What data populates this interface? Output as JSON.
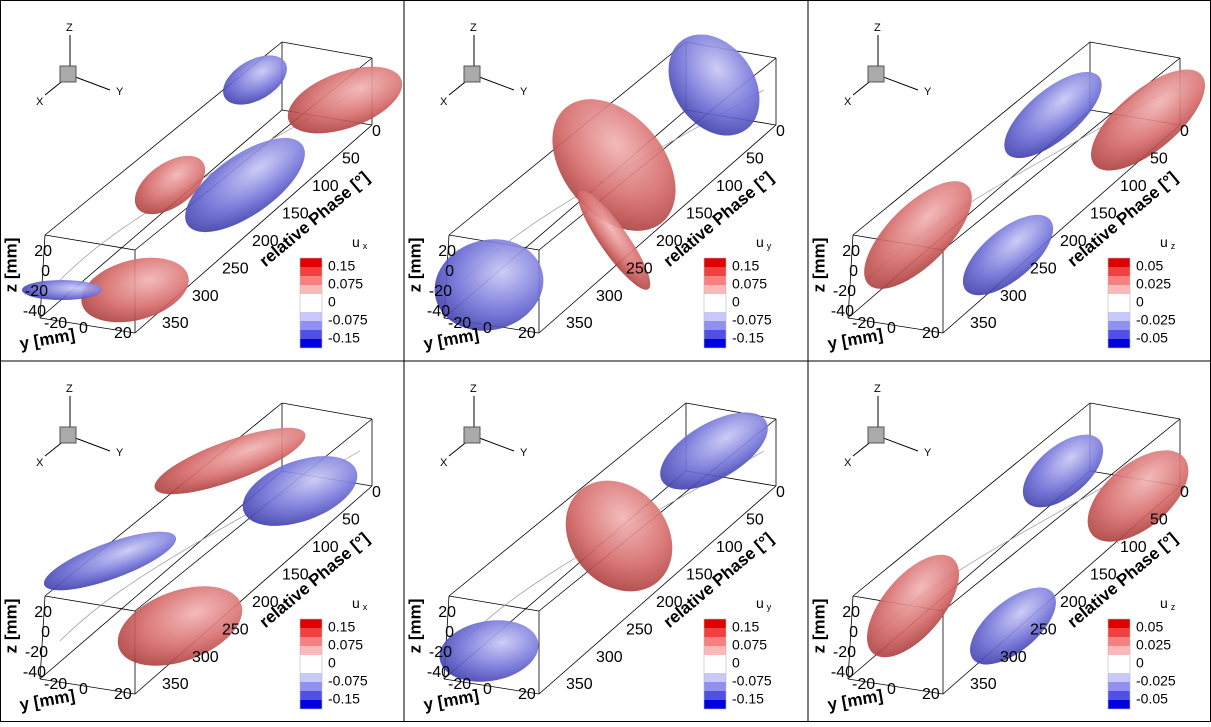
{
  "panels": [
    {
      "triad": {
        "z": "Z",
        "x": "X",
        "y": "Y"
      },
      "z_axis": {
        "label": "z [mm]",
        "ticks": [
          "20",
          "0",
          "-20",
          "-40"
        ]
      },
      "y_axis": {
        "label": "y [mm]",
        "ticks": [
          "-20",
          "0",
          "20"
        ]
      },
      "phase_axis": {
        "label": "relative Phase [°]",
        "ticks": [
          "0",
          "50",
          "100",
          "150",
          "200",
          "250",
          "300",
          "350"
        ]
      },
      "legend": {
        "title": "u",
        "subscript": "x",
        "ticks": [
          "0.15",
          "0.075",
          "0",
          "-0.075",
          "-0.15"
        ]
      }
    },
    {
      "triad": {
        "z": "Z",
        "x": "X",
        "y": "Y"
      },
      "z_axis": {
        "label": "z [mm]",
        "ticks": [
          "20",
          "0",
          "-20",
          "-40"
        ]
      },
      "y_axis": {
        "label": "y [mm]",
        "ticks": [
          "-20",
          "0",
          "20"
        ]
      },
      "phase_axis": {
        "label": "relative Phase [°]",
        "ticks": [
          "0",
          "50",
          "100",
          "150",
          "200",
          "250",
          "300",
          "350"
        ]
      },
      "legend": {
        "title": "u",
        "subscript": "y",
        "ticks": [
          "0.15",
          "0.075",
          "0",
          "-0.075",
          "-0.15"
        ]
      }
    },
    {
      "triad": {
        "z": "Z",
        "x": "X",
        "y": "Y"
      },
      "z_axis": {
        "label": "z [mm]",
        "ticks": [
          "20",
          "0",
          "-20",
          "-40"
        ]
      },
      "y_axis": {
        "label": "y [mm]",
        "ticks": [
          "-20",
          "0",
          "20"
        ]
      },
      "phase_axis": {
        "label": "relative Phase [°]",
        "ticks": [
          "0",
          "50",
          "100",
          "150",
          "200",
          "250",
          "300",
          "350"
        ]
      },
      "legend": {
        "title": "u",
        "subscript": "z",
        "ticks": [
          "0.05",
          "0.025",
          "0",
          "-0.025",
          "-0.05"
        ]
      }
    },
    {
      "triad": {
        "z": "Z",
        "x": "X",
        "y": "Y"
      },
      "z_axis": {
        "label": "z [mm]",
        "ticks": [
          "20",
          "0",
          "-20",
          "-40"
        ]
      },
      "y_axis": {
        "label": "y [mm]",
        "ticks": [
          "-20",
          "0",
          "20"
        ]
      },
      "phase_axis": {
        "label": "relative Phase [°]",
        "ticks": [
          "0",
          "50",
          "100",
          "150",
          "200",
          "250",
          "300",
          "350"
        ]
      },
      "legend": {
        "title": "u",
        "subscript": "x",
        "ticks": [
          "0.15",
          "0.075",
          "0",
          "-0.075",
          "-0.15"
        ]
      }
    },
    {
      "triad": {
        "z": "Z",
        "x": "X",
        "y": "Y"
      },
      "z_axis": {
        "label": "z [mm]",
        "ticks": [
          "20",
          "0",
          "-20",
          "-40"
        ]
      },
      "y_axis": {
        "label": "y [mm]",
        "ticks": [
          "-20",
          "0",
          "20"
        ]
      },
      "phase_axis": {
        "label": "relative Phase [°]",
        "ticks": [
          "0",
          "50",
          "100",
          "150",
          "200",
          "250",
          "300",
          "350"
        ]
      },
      "legend": {
        "title": "u",
        "subscript": "y",
        "ticks": [
          "0.15",
          "0.075",
          "0",
          "-0.075",
          "-0.15"
        ]
      }
    },
    {
      "triad": {
        "z": "Z",
        "x": "X",
        "y": "Y"
      },
      "z_axis": {
        "label": "z [mm]",
        "ticks": [
          "20",
          "0",
          "-20",
          "-40"
        ]
      },
      "y_axis": {
        "label": "y [mm]",
        "ticks": [
          "-20",
          "0",
          "20"
        ]
      },
      "phase_axis": {
        "label": "relative Phase [°]",
        "ticks": [
          "0",
          "50",
          "100",
          "150",
          "200",
          "250",
          "300",
          "350"
        ]
      },
      "legend": {
        "title": "u",
        "subscript": "z",
        "ticks": [
          "0.05",
          "0.025",
          "0",
          "-0.025",
          "-0.05"
        ]
      }
    }
  ]
}
